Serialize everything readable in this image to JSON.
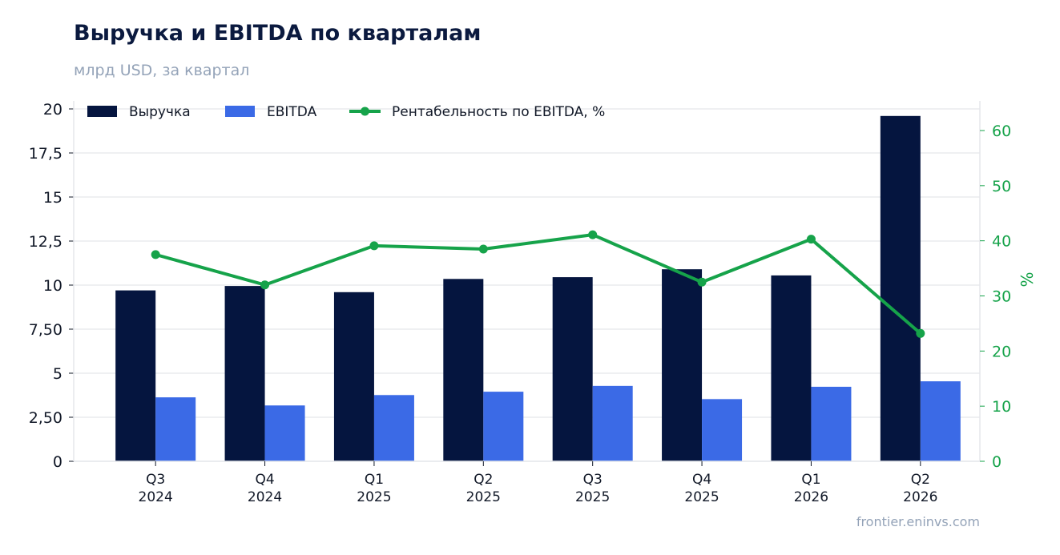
{
  "header": {
    "title": "Выручка и EBITDA по кварталам",
    "subtitle": "млрд USD, за квартал"
  },
  "footer": {
    "source": "frontier.eninvs.com"
  },
  "colors": {
    "revenue": "#05153f",
    "ebitda": "#3b6ae6",
    "margin": "#16a34a",
    "grid": "#e5e7eb"
  },
  "chart_data": {
    "type": "bar",
    "categories": [
      [
        "Q3",
        "2024"
      ],
      [
        "Q4",
        "2024"
      ],
      [
        "Q1",
        "2025"
      ],
      [
        "Q2",
        "2025"
      ],
      [
        "Q3",
        "2025"
      ],
      [
        "Q4",
        "2025"
      ],
      [
        "Q1",
        "2026"
      ],
      [
        "Q2",
        "2026"
      ]
    ],
    "series": [
      {
        "name": "Выручка",
        "axis": "left",
        "kind": "bar",
        "values": [
          9.7,
          9.95,
          9.6,
          10.35,
          10.45,
          10.9,
          10.55,
          19.6
        ]
      },
      {
        "name": "EBITDA",
        "axis": "left",
        "kind": "bar",
        "values": [
          3.63,
          3.17,
          3.76,
          3.95,
          4.28,
          3.53,
          4.23,
          4.54
        ]
      },
      {
        "name": "Рентабельность по EBITDA, %",
        "axis": "right",
        "kind": "line",
        "values": [
          37.5,
          32.0,
          39.1,
          38.5,
          41.1,
          32.5,
          40.3,
          23.2
        ]
      }
    ],
    "ylim": [
      0,
      20
    ],
    "yticks": [
      0,
      2.5,
      5,
      7.5,
      10,
      12.5,
      15,
      17.5,
      20
    ],
    "ytick_labels": [
      "0",
      "2,50",
      "5",
      "7,50",
      "10",
      "12,5",
      "15",
      "17,5",
      "20"
    ],
    "y2lim": [
      0,
      60
    ],
    "y2ticks": [
      0,
      10,
      20,
      30,
      40,
      50,
      60
    ],
    "y2label": "%",
    "grid": true,
    "legend_position": "top-left"
  }
}
